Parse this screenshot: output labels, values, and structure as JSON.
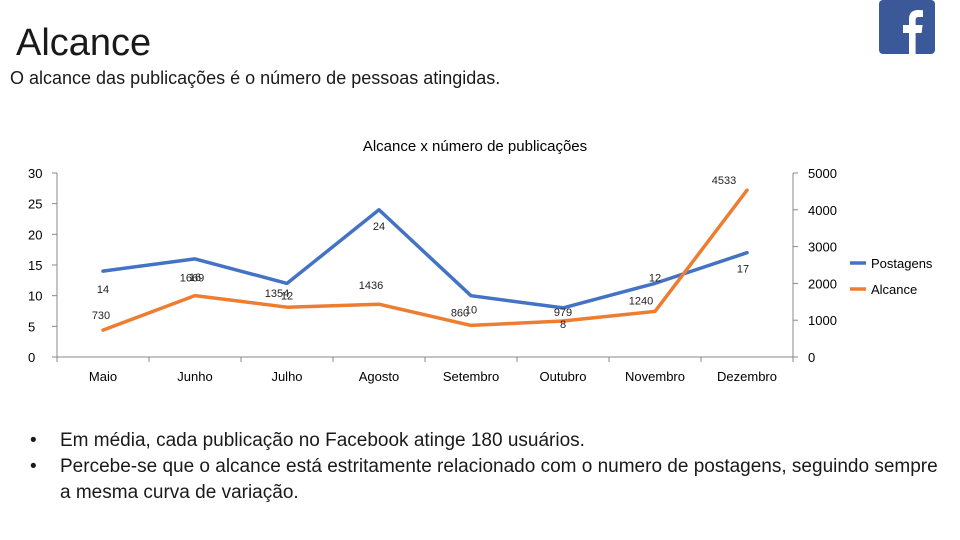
{
  "slide": {
    "title": "Alcance",
    "subtitle": "O alcance das publicações é o número de pessoas atingidas.",
    "logo_icon": "facebook-icon",
    "bullets": [
      "Em média, cada publicação no Facebook atinge 180 usuários.",
      "Percebe-se que o alcance está estritamente relacionado com o numero de postagens, seguindo sempre a mesma curva de variação."
    ]
  },
  "colors": {
    "postagens": "#4472c4",
    "alcance": "#ed7d31",
    "facebook": "#3b5998"
  },
  "chart_data": {
    "type": "line",
    "title": "Alcance x  número de publicações",
    "categories": [
      "Maio",
      "Junho",
      "Julho",
      "Agosto",
      "Setembro",
      "Outubro",
      "Novembro",
      "Dezembro"
    ],
    "y_left": {
      "min": 0,
      "max": 30,
      "ticks": [
        0,
        5,
        10,
        15,
        20,
        25,
        30
      ]
    },
    "y_right": {
      "min": 0,
      "max": 5000,
      "ticks": [
        0,
        1000,
        2000,
        3000,
        4000,
        5000
      ]
    },
    "series": [
      {
        "name": "Postagens",
        "axis": "left",
        "values": [
          14,
          16,
          12,
          24,
          10,
          8,
          12,
          17
        ],
        "labels": [
          "14",
          "16",
          "12",
          "24",
          "10",
          "8",
          "12",
          "17"
        ]
      },
      {
        "name": "Alcance",
        "axis": "right",
        "values": [
          730,
          1669,
          1354,
          1436,
          860,
          979,
          1240,
          4533
        ],
        "labels": [
          "730",
          "1669",
          "1354",
          "1436",
          "860",
          "979",
          "1240",
          "4533"
        ]
      }
    ],
    "legend": "right"
  }
}
